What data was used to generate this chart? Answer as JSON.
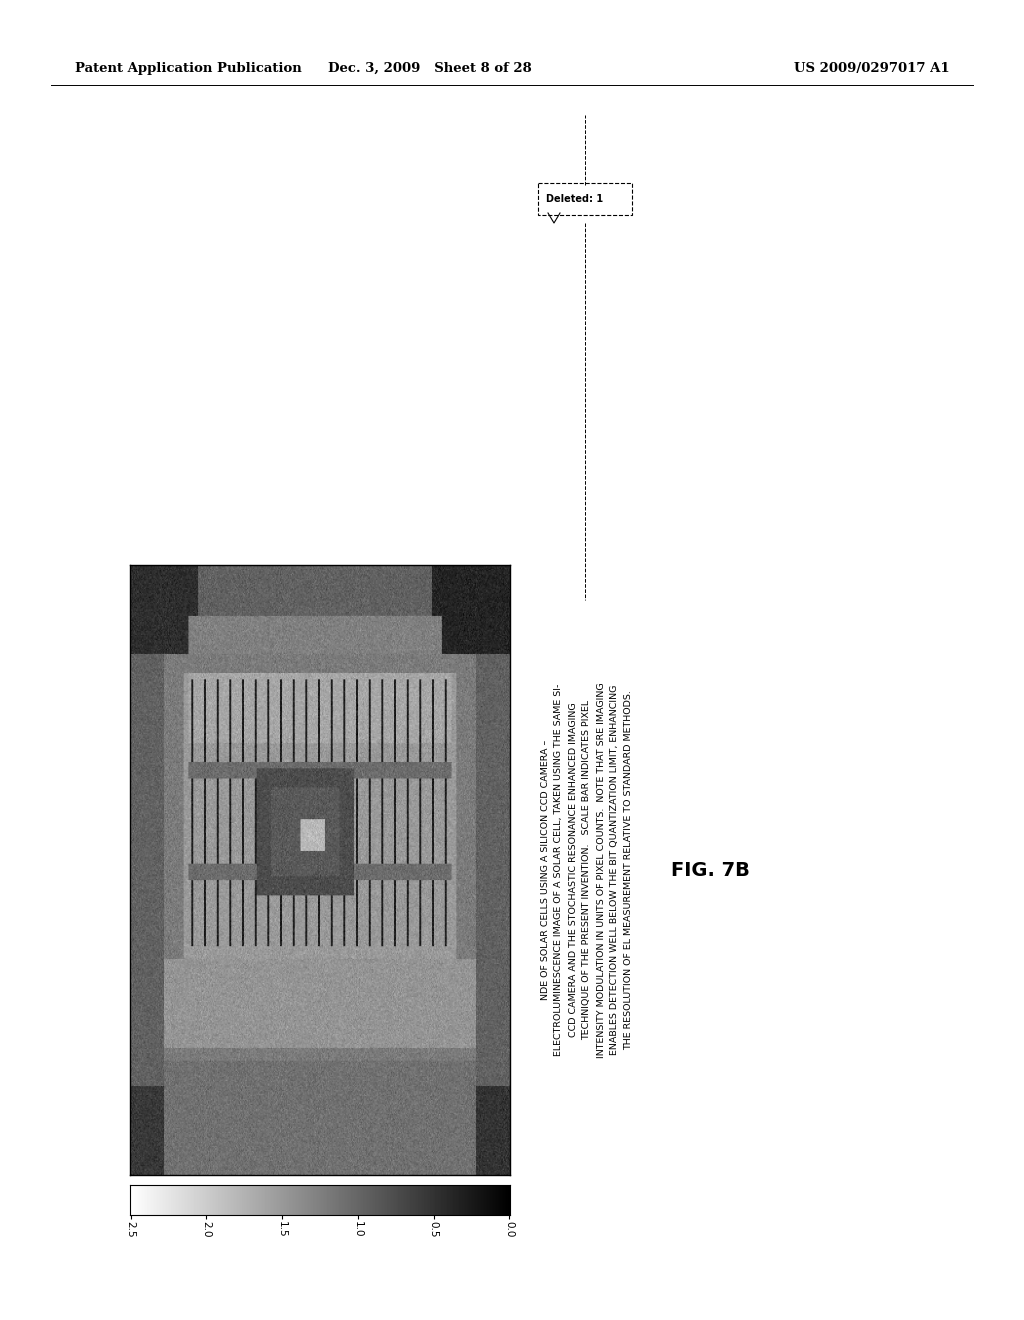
{
  "page_title_left": "Patent Application Publication",
  "page_title_center": "Dec. 3, 2009   Sheet 8 of 28",
  "page_title_right": "US 2009/0297017 A1",
  "fig_label": "FIG. 7B",
  "colorbar_ticks": [
    "2.5",
    "2.0",
    "1.5",
    "1.0",
    "0.5",
    "0.0"
  ],
  "caption_text": "NDE OF SOLAR CELLS USING A SILICON CCD CAMERA –\nELECTROLUMINESCENCE IMAGE OF A SOLAR CELL, TAKEN USING THE SAME SI-\nCCD CAMERA AND THE STOCHASTIC RESONANCE ENHANCED IMAGING\nTECHNIQUE OF THE PRESENT INVENTION.   SCALE BAR INDICATES PIXEL\nINTENSITY MODULATION IN UNITS OF PIXEL COUNTS.  NOTE THAT SRE IMAGING\nENABLES DETECTION WELL BELOW THE BIT QUANTIZATION LIMIT, ENHANCING\nTHE RESOLUTION OF EL MEASUREMENT RELATIVE TO STANDARD METHODS.",
  "deleted_label": "Deleted: 1",
  "background_color": "#ffffff"
}
